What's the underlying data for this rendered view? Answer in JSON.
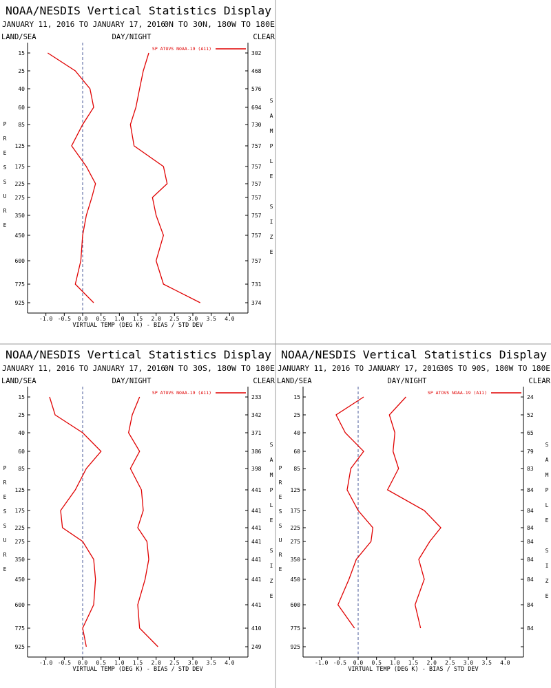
{
  "chart_data": [
    {
      "type": "line",
      "title": "NOAA/NESDIS Vertical Statistics Display",
      "subtitle": "JANUARY 11, 2016 TO JANUARY 17, 2016",
      "region": "0N TO 30N, 180W TO 180E",
      "left_label": "LAND/SEA",
      "center_label": "DAY/NIGHT",
      "right_label": "CLEAR",
      "y_label": "PRESSURE",
      "y2_label": "SAMPLE SIZE",
      "x_label": "VIRTUAL TEMP (DEG K) - BIAS / STD DEV",
      "categories": [
        15,
        25,
        40,
        60,
        85,
        125,
        175,
        225,
        275,
        350,
        450,
        600,
        775,
        925
      ],
      "sample_size": [
        302,
        468,
        576,
        694,
        730,
        757,
        757,
        757,
        757,
        757,
        757,
        757,
        731,
        374
      ],
      "series": [
        {
          "name": "SP ATOVS NOAA-19 (A11)",
          "color": "#e00000",
          "values": [
            -0.95,
            -0.2,
            0.2,
            0.3,
            0.0,
            -0.3,
            0.1,
            0.35,
            0.25,
            0.1,
            0.0,
            -0.05,
            -0.2,
            0.3
          ]
        },
        {
          "color": "#e00000",
          "values": [
            1.8,
            1.65,
            1.55,
            1.45,
            1.3,
            1.4,
            2.2,
            2.3,
            1.9,
            2.0,
            2.2,
            2.0,
            2.2,
            3.2
          ]
        }
      ],
      "xlim": [
        -1.5,
        4.5
      ],
      "xticks": [
        {
          "value": -1,
          "label": "-1.0"
        },
        -0.5,
        {
          "value": 0,
          "label": "0.0"
        },
        0.5,
        {
          "value": 1,
          "label": "1.0"
        },
        1.5,
        {
          "value": 2,
          "label": "2.0"
        },
        2.5,
        {
          "value": 3,
          "label": "3.0"
        },
        3.5,
        {
          "value": 4,
          "label": "4.0"
        }
      ]
    },
    {
      "type": "line",
      "title": "NOAA/NESDIS Vertical Statistics Display",
      "subtitle": "JANUARY 11, 2016 TO JANUARY 17, 2016",
      "region": "0N TO 30S, 180W TO 180E",
      "left_label": "LAND/SEA",
      "center_label": "DAY/NIGHT",
      "right_label": "CLEAR",
      "y_label": "PRESSURE",
      "y2_label": "SAMPLE SIZE",
      "x_label": "VIRTUAL TEMP (DEG K) - BIAS / STD DEV",
      "categories": [
        15,
        25,
        40,
        60,
        85,
        125,
        175,
        225,
        275,
        350,
        450,
        600,
        775,
        925
      ],
      "sample_size": [
        233,
        342,
        371,
        386,
        398,
        441,
        441,
        441,
        441,
        441,
        441,
        441,
        410,
        249
      ],
      "series": [
        {
          "name": "SP ATOVS NOAA-19 (A11)",
          "color": "#e00000",
          "values": [
            -0.9,
            -0.75,
            0.0,
            0.5,
            0.1,
            -0.2,
            -0.6,
            -0.55,
            0.0,
            0.3,
            0.35,
            0.3,
            0.0,
            0.1
          ]
        },
        {
          "color": "#e00000",
          "values": [
            1.55,
            1.35,
            1.25,
            1.55,
            1.3,
            1.6,
            1.65,
            1.5,
            1.75,
            1.8,
            1.7,
            1.5,
            1.55,
            2.05
          ]
        }
      ],
      "xlim": [
        -1.5,
        4.5
      ],
      "xticks": [
        {
          "value": -1,
          "label": "-1.0"
        },
        -0.5,
        {
          "value": 0,
          "label": "0.0"
        },
        0.5,
        {
          "value": 1,
          "label": "1.0"
        },
        1.5,
        {
          "value": 2,
          "label": "2.0"
        },
        2.5,
        {
          "value": 3,
          "label": "3.0"
        },
        3.5,
        {
          "value": 4,
          "label": "4.0"
        }
      ]
    },
    {
      "type": "line",
      "title": "NOAA/NESDIS Vertical Statistics Display",
      "subtitle": "JANUARY 11, 2016 TO JANUARY 17, 2016",
      "region": "30S TO 90S, 180W TO 180E",
      "left_label": "LAND/SEA",
      "center_label": "DAY/NIGHT",
      "right_label": "CLEAR",
      "y_label": "PRESSURE",
      "y2_label": "SAMPLE SIZE",
      "x_label": "VIRTUAL TEMP (DEG K) - BIAS / STD DEV",
      "categories": [
        15,
        25,
        40,
        60,
        85,
        125,
        175,
        225,
        275,
        350,
        450,
        600,
        775,
        925
      ],
      "sample_size": [
        24,
        52,
        65,
        79,
        83,
        84,
        84,
        84,
        84,
        84,
        84,
        84,
        84,
        null
      ],
      "series": [
        {
          "name": "SP ATOVS NOAA-19 (A11)",
          "color": "#e00000",
          "values": [
            0.15,
            -0.6,
            -0.35,
            0.15,
            -0.2,
            -0.3,
            0.0,
            0.4,
            0.35,
            -0.05,
            -0.25,
            -0.55,
            -0.1,
            null
          ]
        },
        {
          "color": "#e00000",
          "values": [
            1.3,
            0.85,
            1.0,
            0.95,
            1.1,
            0.8,
            1.8,
            2.25,
            1.95,
            1.65,
            1.8,
            1.55,
            1.7,
            null
          ]
        }
      ],
      "xlim": [
        -1.5,
        4.5
      ],
      "xticks": [
        {
          "value": -1,
          "label": "-1.0"
        },
        -0.5,
        {
          "value": 0,
          "label": "0.0"
        },
        0.5,
        {
          "value": 1,
          "label": "1.0"
        },
        1.5,
        {
          "value": 2,
          "label": "2.0"
        },
        2.5,
        {
          "value": 3,
          "label": "3.0"
        },
        3.5,
        {
          "value": 4,
          "label": "4.0"
        }
      ]
    }
  ]
}
